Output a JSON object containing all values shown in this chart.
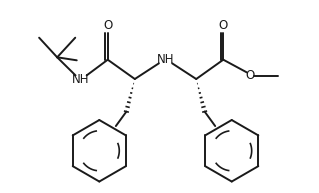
{
  "bg_color": "#ffffff",
  "line_color": "#1a1a1a",
  "line_width": 1.4,
  "font_size": 8.5,
  "figsize": [
    3.19,
    1.93
  ],
  "dpi": 100,
  "xlim": [
    -0.3,
    10.3
  ],
  "ylim": [
    -0.2,
    6.2
  ]
}
